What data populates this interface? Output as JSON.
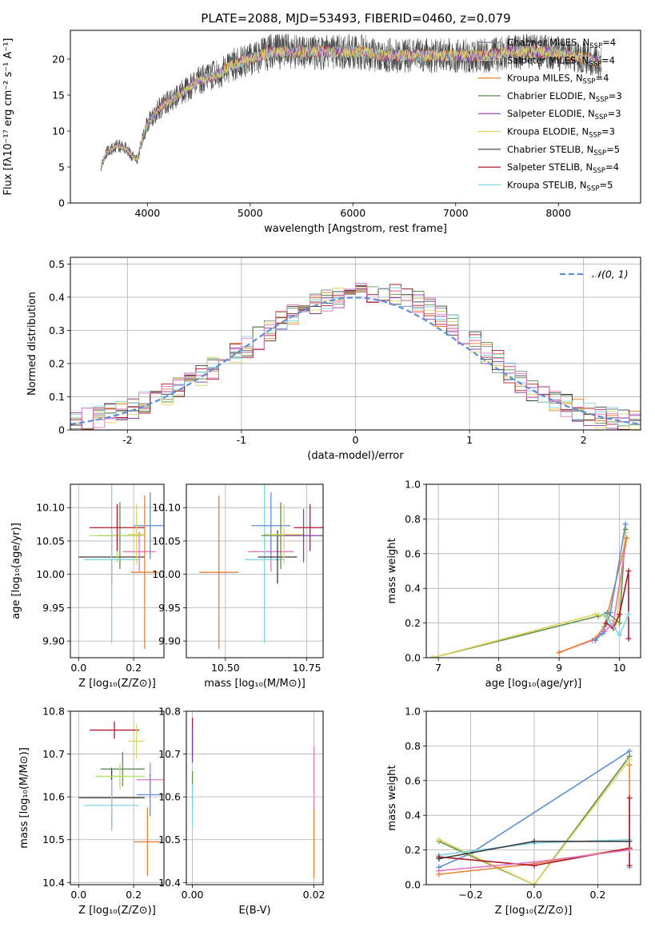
{
  "figure": {
    "title": "PLATE=2088, MJD=53493, FIBERID=0460, z=0.079"
  },
  "chart_data": [
    {
      "id": "spectrum",
      "type": "line",
      "xlabel": "wavelength [Angstrom, rest frame]",
      "ylabel": "Flux [fλ10⁻¹⁷ erg cm⁻² s⁻¹ A⁻¹]",
      "xlim": [
        3250,
        8800
      ],
      "ylim": [
        0,
        24
      ],
      "xticks": [
        4000,
        5000,
        6000,
        7000,
        8000
      ],
      "yticks": [
        0,
        5,
        10,
        15,
        20
      ],
      "grid": false,
      "legend_position": "right",
      "data_envelope": {
        "x": [
          3550,
          3600,
          3700,
          3800,
          3850,
          3900,
          3950,
          4000,
          4100,
          4200,
          4300,
          4400,
          4500,
          4600,
          4700,
          4800,
          4900,
          5000,
          5100,
          5200,
          5300,
          5500,
          5700,
          5900,
          6100,
          6300,
          6500,
          6700,
          6900,
          7100,
          7300,
          7500,
          7700,
          7900,
          8100,
          8300,
          8420
        ],
        "y": [
          5,
          7,
          8,
          7.5,
          6.5,
          6,
          9,
          11,
          13,
          14,
          15,
          16,
          17,
          17.5,
          18,
          19,
          19.5,
          20,
          20.5,
          21,
          21,
          21,
          21,
          21,
          21,
          20.5,
          20.5,
          20.5,
          20.5,
          20.5,
          20.5,
          21,
          21,
          21,
          20.5,
          20,
          19.5
        ]
      },
      "series": [
        {
          "label": "Chabrier MILES, N",
          "sub": "SSP",
          "tail": "=4",
          "color": "#7f7f7f"
        },
        {
          "label": "Salpeter MILES, N",
          "sub": "SSP",
          "tail": "=4",
          "color": "#c5c5c5"
        },
        {
          "label": "Kroupa MILES, N",
          "sub": "SSP",
          "tail": "=4",
          "color": "#e9812f"
        },
        {
          "label": "Chabrier ELODIE, N",
          "sub": "SSP",
          "tail": "=3",
          "color": "#5e8f4c"
        },
        {
          "label": "Salpeter ELODIE, N",
          "sub": "SSP",
          "tail": "=3",
          "color": "#8c3bab"
        },
        {
          "label": "Kroupa ELODIE, N",
          "sub": "SSP",
          "tail": "=3",
          "color": "#e2d460"
        },
        {
          "label": "Chabrier STELIB, N",
          "sub": "SSP",
          "tail": "=5",
          "color": "#3c3c3c"
        },
        {
          "label": "Salpeter STELIB, N",
          "sub": "SSP",
          "tail": "=4",
          "color": "#b2182b"
        },
        {
          "label": "Kroupa STELIB, N",
          "sub": "SSP",
          "tail": "=5",
          "color": "#7fd6e6"
        }
      ]
    },
    {
      "id": "residuals",
      "type": "line",
      "xlabel": "(data-model)/error",
      "ylabel": "Normed distribution",
      "xlim": [
        -2.5,
        2.5
      ],
      "ylim": [
        0,
        0.52
      ],
      "xticks": [
        -2,
        -1,
        0,
        1,
        2
      ],
      "yticks": [
        0.0,
        0.1,
        0.2,
        0.3,
        0.4,
        0.5
      ],
      "grid": true,
      "legend_position": "top-right",
      "reference_label": "𝒩(0, 1)",
      "reference_color": "#5b8fd6",
      "bin_width": 0.1,
      "histogram_shape": {
        "x": [
          -2.5,
          -2.0,
          -1.5,
          -1.0,
          -0.5,
          0.0,
          0.5,
          1.0,
          1.5,
          2.0,
          2.5
        ],
        "y": [
          0.02,
          0.06,
          0.13,
          0.24,
          0.36,
          0.42,
          0.4,
          0.28,
          0.13,
          0.05,
          0.02
        ]
      },
      "series_colors": [
        "#7f7f7f",
        "#e9812f",
        "#5e8f4c",
        "#8c3bab",
        "#e2d460",
        "#3c3c3c",
        "#b2182b",
        "#7fd6e6",
        "#e377c2"
      ]
    },
    {
      "id": "age_vs_Z",
      "type": "scatter",
      "xlabel": "Z [log₁₀(Z/Z⊙)]",
      "ylabel": "age  [log₁₀(age/yr)]",
      "xlim": [
        -0.03,
        0.31
      ],
      "ylim": [
        9.875,
        10.135
      ],
      "xticks": [
        "0.0",
        "0.2"
      ],
      "yticks": [
        "9.90",
        "9.95",
        "10.00",
        "10.05",
        "10.10"
      ],
      "grid": true,
      "points": [
        {
          "x": 0.12,
          "xerr": 0.12,
          "y": 10.026,
          "yerr": 0.04,
          "color": "#3c3c3c"
        },
        {
          "x": 0.15,
          "xerr": 0.08,
          "y": 10.058,
          "yerr": 0.05,
          "color": "#5e8f4c"
        },
        {
          "x": 0.14,
          "xerr": 0.1,
          "y": 10.058,
          "yerr": 0.04,
          "color": "#b5e06a"
        },
        {
          "x": 0.12,
          "xerr": 0.1,
          "y": 10.022,
          "yerr": 0.125,
          "color": "#7fd6e6"
        },
        {
          "x": 0.14,
          "xerr": 0.1,
          "y": 10.07,
          "yerr": 0.035,
          "color": "#b2182b"
        },
        {
          "x": 0.22,
          "xerr": 0.06,
          "y": 10.034,
          "yerr": 0.03,
          "color": "#e377c2"
        },
        {
          "x": 0.26,
          "xerr": 0.06,
          "y": 10.073,
          "yerr": 0.05,
          "color": "#5b8fd6"
        },
        {
          "x": 0.24,
          "xerr": 0.05,
          "y": 10.003,
          "yerr": 0.115,
          "color": "#e9812f"
        },
        {
          "x": 0.21,
          "xerr": 0.03,
          "y": 10.06,
          "yerr": 0.045,
          "color": "#e2d460"
        }
      ]
    },
    {
      "id": "age_vs_mass",
      "type": "scatter",
      "xlabel": "mass [log₁₀(M/M⊙)]",
      "ylabel": "",
      "xlim": [
        10.38,
        10.8
      ],
      "ylim": [
        9.875,
        10.135
      ],
      "xticks": [
        "10.50",
        "10.75"
      ],
      "yticks": [
        "9.90",
        "9.95",
        "10.00",
        "10.05",
        "10.10"
      ],
      "grid": true,
      "points": [
        {
          "x": 10.48,
          "xerr": 0.06,
          "y": 10.003,
          "yerr": 0.115,
          "color": "#e9812f"
        },
        {
          "x": 10.64,
          "xerr": 0.07,
          "y": 10.034,
          "yerr": 0.03,
          "color": "#e377c2"
        },
        {
          "x": 10.62,
          "xerr": 0.06,
          "y": 10.022,
          "yerr": 0.125,
          "color": "#7fd6e6"
        },
        {
          "x": 10.64,
          "xerr": 0.06,
          "y": 10.073,
          "yerr": 0.05,
          "color": "#5b8fd6"
        },
        {
          "x": 10.66,
          "xerr": 0.06,
          "y": 10.026,
          "yerr": 0.04,
          "color": "#3c3c3c"
        },
        {
          "x": 10.67,
          "xerr": 0.06,
          "y": 10.058,
          "yerr": 0.05,
          "color": "#5e8f4c"
        },
        {
          "x": 10.68,
          "xerr": 0.06,
          "y": 10.06,
          "yerr": 0.045,
          "color": "#e2d460"
        },
        {
          "x": 10.76,
          "xerr": 0.05,
          "y": 10.07,
          "yerr": 0.035,
          "color": "#b2182b"
        },
        {
          "x": 10.74,
          "xerr": 0.06,
          "y": 10.058,
          "yerr": 0.04,
          "color": "#8c3bab"
        }
      ]
    },
    {
      "id": "weight_vs_age",
      "type": "line",
      "xlabel": "age  [log₁₀(age/yr)]",
      "ylabel": "mass weight",
      "xlim": [
        6.8,
        10.35
      ],
      "ylim": [
        0,
        1
      ],
      "xticks": [
        7,
        8,
        9,
        10
      ],
      "yticks": [
        "0.0",
        "0.2",
        "0.4",
        "0.6",
        "0.8",
        "1.0"
      ],
      "grid": true,
      "series": [
        {
          "color": "#5e8f4c",
          "x": [
            6.9,
            9.65,
            9.8,
            10.0,
            10.1
          ],
          "y": [
            0.0,
            0.24,
            0.26,
            0.2,
            0.74
          ]
        },
        {
          "color": "#e2d460",
          "x": [
            6.9,
            9.6,
            9.75,
            9.95,
            10.1
          ],
          "y": [
            0.0,
            0.25,
            0.24,
            0.2,
            0.72
          ]
        },
        {
          "color": "#e377c2",
          "x": [
            9.0,
            9.55,
            9.75,
            9.9,
            10.12
          ],
          "y": [
            0.03,
            0.1,
            0.15,
            0.2,
            0.69
          ]
        },
        {
          "color": "#e9812f",
          "x": [
            9.0,
            9.6,
            9.75,
            10.12
          ],
          "y": [
            0.03,
            0.11,
            0.18,
            0.69
          ]
        },
        {
          "color": "#5b8fd6",
          "x": [
            9.6,
            9.72,
            9.85,
            10.1
          ],
          "y": [
            0.1,
            0.14,
            0.26,
            0.77
          ]
        },
        {
          "color": "#b2182b",
          "x": [
            9.78,
            9.9,
            10.0,
            10.15,
            10.15
          ],
          "y": [
            0.2,
            0.17,
            0.25,
            0.5,
            0.11
          ]
        },
        {
          "color": "#7fd6e6",
          "x": [
            9.75,
            9.85,
            10.0,
            10.15
          ],
          "y": [
            0.25,
            0.2,
            0.13,
            0.25
          ]
        }
      ]
    },
    {
      "id": "mass_vs_Z",
      "type": "scatter",
      "xlabel": "Z [log₁₀(Z/Z⊙)]",
      "ylabel": "mass [log₁₀(M/M⊙)]",
      "xlim": [
        -0.03,
        0.31
      ],
      "ylim": [
        10.395,
        10.8
      ],
      "xticks": [
        "0.0",
        "0.2"
      ],
      "yticks": [
        "10.4",
        "10.5",
        "10.6",
        "10.7",
        "10.8"
      ],
      "grid": true,
      "points": [
        {
          "x": 0.12,
          "xerr": 0.12,
          "y": 10.598,
          "yerr": 0.07,
          "color": "#3c3c3c"
        },
        {
          "x": 0.16,
          "xerr": 0.08,
          "y": 10.665,
          "yerr": 0.04,
          "color": "#5e8f4c"
        },
        {
          "x": 0.15,
          "xerr": 0.09,
          "y": 10.648,
          "yerr": 0.03,
          "color": "#b5e06a"
        },
        {
          "x": 0.12,
          "xerr": 0.1,
          "y": 10.58,
          "yerr": 0.06,
          "color": "#7fd6e6"
        },
        {
          "x": 0.13,
          "xerr": 0.09,
          "y": 10.756,
          "yerr": 0.02,
          "color": "#b2182b"
        },
        {
          "x": 0.26,
          "xerr": 0.05,
          "y": 10.64,
          "yerr": 0.04,
          "color": "#e377c2"
        },
        {
          "x": 0.26,
          "xerr": 0.05,
          "y": 10.605,
          "yerr": 0.05,
          "color": "#5b8fd6"
        },
        {
          "x": 0.25,
          "xerr": 0.05,
          "y": 10.495,
          "yerr": 0.08,
          "color": "#e9812f"
        },
        {
          "x": 0.21,
          "xerr": 0.03,
          "y": 10.73,
          "yerr": 0.04,
          "color": "#e2d460"
        }
      ]
    },
    {
      "id": "mass_vs_ebv",
      "type": "scatter",
      "xlabel": "E(B-V)",
      "ylabel": "",
      "xlim": [
        -0.001,
        0.0215
      ],
      "ylim": [
        10.395,
        10.8
      ],
      "xticks": [
        "0.00",
        "0.02"
      ],
      "yticks": [
        "10.4",
        "10.5",
        "10.6",
        "10.7",
        "10.8"
      ],
      "grid": true,
      "points": [
        {
          "x": 0.0,
          "y": 10.74,
          "yerr": 0.045,
          "color": "#b2182b"
        },
        {
          "x": 0.0,
          "y": 10.72,
          "yerr": 0.04,
          "color": "#8c3bab"
        },
        {
          "x": 0.0,
          "y": 10.62,
          "yerr": 0.04,
          "color": "#5e8f4c"
        },
        {
          "x": 0.0,
          "y": 10.58,
          "yerr": 0.05,
          "color": "#7fd6e6"
        },
        {
          "x": 0.02,
          "y": 10.64,
          "yerr": 0.08,
          "color": "#e377c2"
        },
        {
          "x": 0.02,
          "y": 10.49,
          "yerr": 0.08,
          "color": "#e9812f"
        }
      ]
    },
    {
      "id": "weight_vs_Z",
      "type": "line",
      "xlabel": "Z [log₁₀(Z/Z⊙)]",
      "ylabel": "mass weight",
      "xlim": [
        -0.34,
        0.335
      ],
      "ylim": [
        0,
        1
      ],
      "xticks": [
        "−0.2",
        "0.0",
        "0.2"
      ],
      "yticks": [
        "0.0",
        "0.2",
        "0.4",
        "0.6",
        "0.8",
        "1.0"
      ],
      "grid": true,
      "series": [
        {
          "color": "#5b8fd6",
          "x": [
            -0.3,
            -0.2,
            0.3
          ],
          "y": [
            0.1,
            0.18,
            0.77
          ]
        },
        {
          "color": "#5e8f4c",
          "x": [
            -0.3,
            0.0,
            0.3
          ],
          "y": [
            0.25,
            0.0,
            0.74
          ]
        },
        {
          "color": "#e2d460",
          "x": [
            -0.3,
            0.0,
            0.3
          ],
          "y": [
            0.26,
            0.0,
            0.72
          ]
        },
        {
          "color": "#7fd6e6",
          "x": [
            -0.3,
            0.0,
            0.3,
            0.3
          ],
          "y": [
            0.17,
            0.24,
            0.26,
            0.1
          ]
        },
        {
          "color": "#e9812f",
          "x": [
            -0.3,
            0.0,
            0.3,
            0.3
          ],
          "y": [
            0.06,
            0.12,
            0.21,
            0.69
          ]
        },
        {
          "color": "#b2182b",
          "x": [
            -0.3,
            0.0,
            0.3,
            0.3,
            0.3
          ],
          "y": [
            0.16,
            0.11,
            0.21,
            0.5,
            0.11
          ]
        },
        {
          "color": "#e377c2",
          "x": [
            -0.3,
            0.0,
            0.3
          ],
          "y": [
            0.08,
            0.13,
            0.2
          ]
        },
        {
          "color": "#3c3c3c",
          "x": [
            -0.3,
            0.0,
            0.3
          ],
          "y": [
            0.15,
            0.25,
            0.25
          ]
        }
      ]
    }
  ]
}
